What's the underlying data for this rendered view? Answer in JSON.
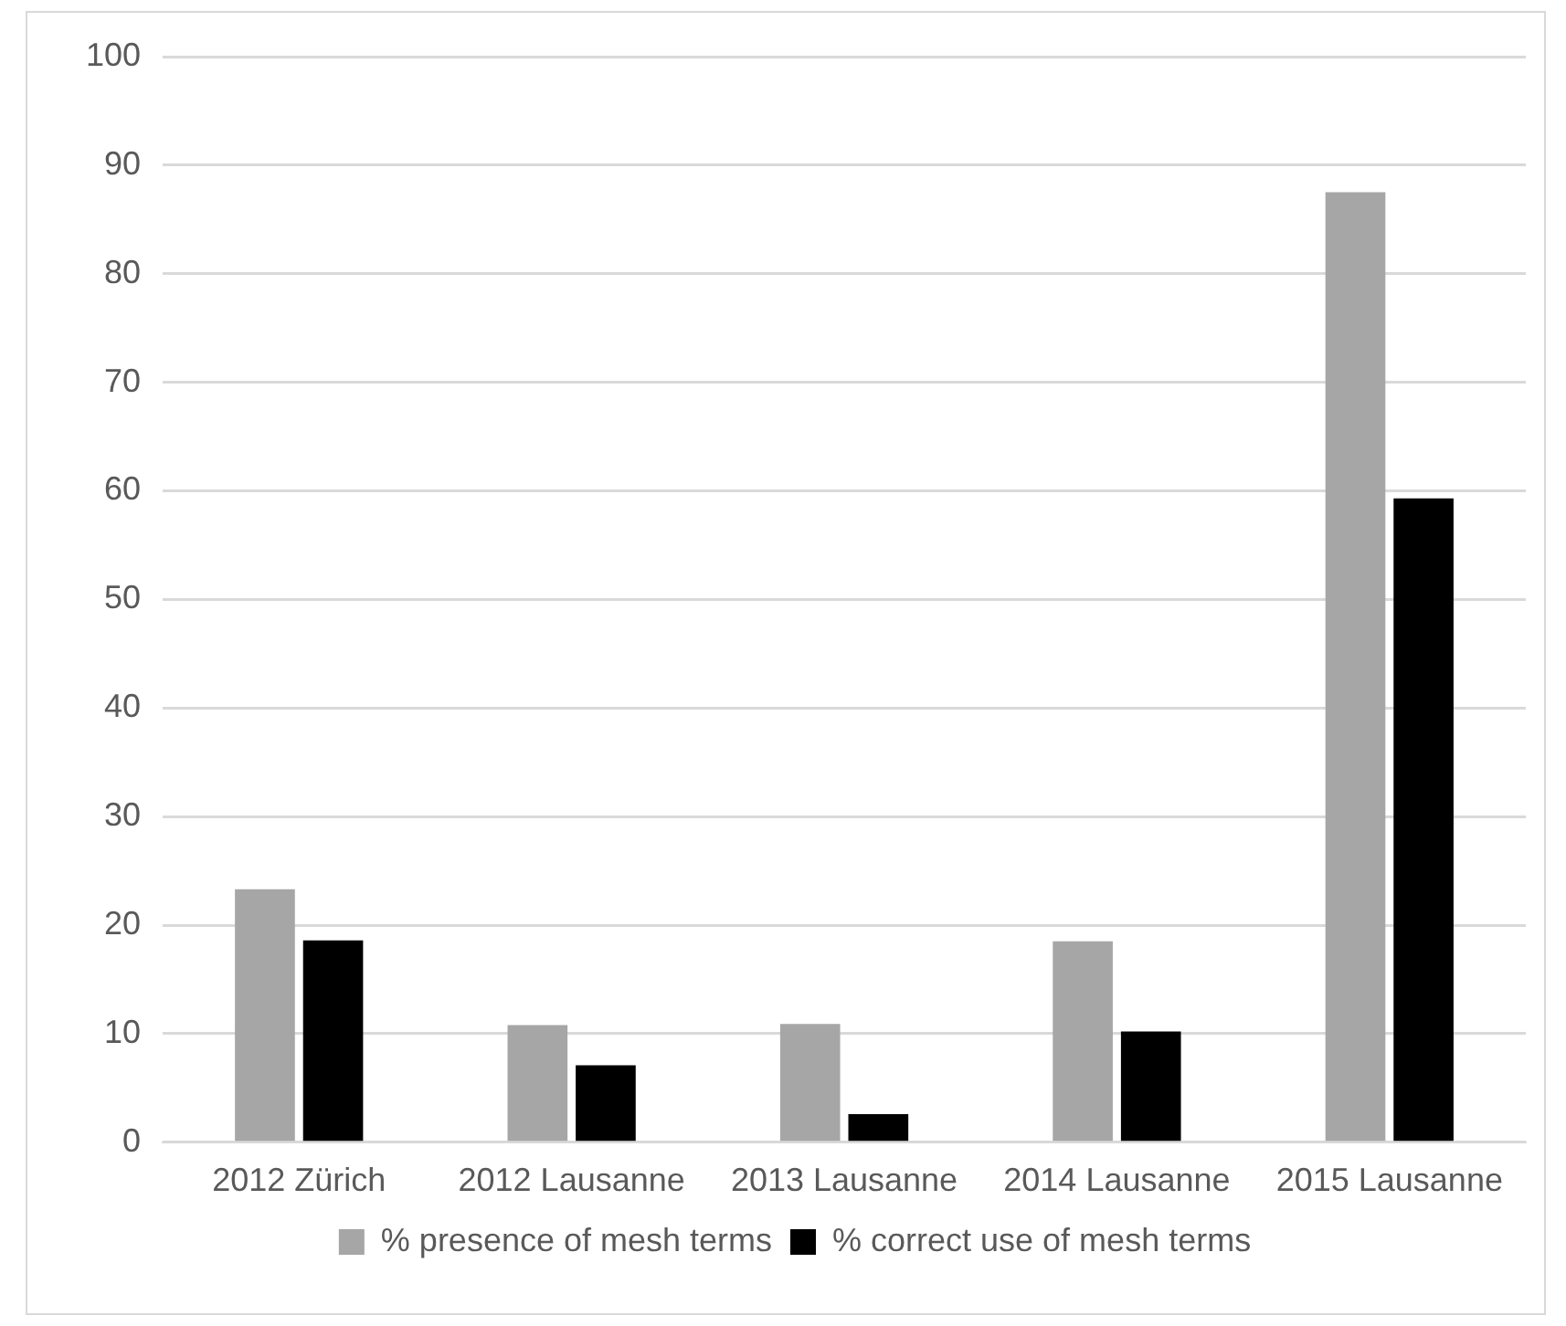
{
  "chart_data": {
    "type": "bar",
    "categories": [
      "2012 Zürich",
      "2012 Lausanne",
      "2013 Lausanne",
      "2014 Lausanne",
      "2015 Lausanne"
    ],
    "series": [
      {
        "name": "% presence of mesh terms",
        "color": "#a6a6a6",
        "values": [
          23.3,
          10.8,
          10.9,
          18.5,
          87.5
        ]
      },
      {
        "name": "% correct use of mesh terms",
        "color": "#000000",
        "values": [
          18.6,
          7.1,
          2.6,
          10.2,
          59.3
        ]
      }
    ],
    "ylim": [
      0,
      100
    ],
    "yticks": [
      0,
      10,
      20,
      30,
      40,
      50,
      60,
      70,
      80,
      90,
      100
    ],
    "grid": "y",
    "legend": "bottom"
  }
}
